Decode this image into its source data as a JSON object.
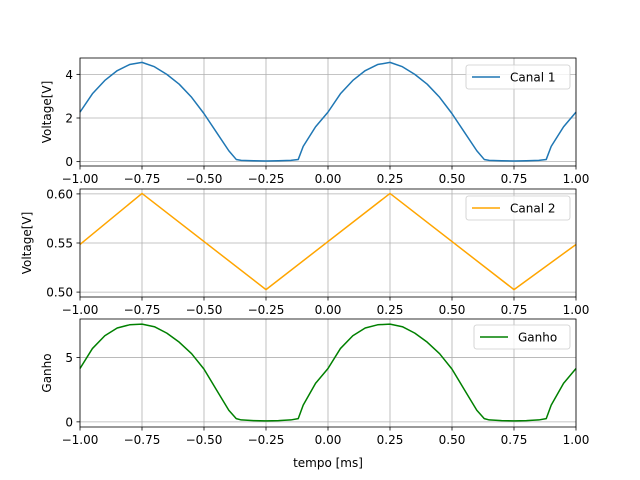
{
  "chart_data": [
    {
      "type": "line",
      "xlim": [
        -1.0,
        1.0
      ],
      "ylim": [
        -0.2,
        4.75
      ],
      "x_ticks": [
        -1.0,
        -0.75,
        -0.5,
        -0.25,
        0.0,
        0.25,
        0.5,
        0.75,
        1.0
      ],
      "x_tick_labels": [
        "−1.00",
        "−0.75",
        "−0.50",
        "−0.25",
        "0.00",
        "0.25",
        "0.50",
        "0.75",
        "1.00"
      ],
      "y_ticks": [
        0,
        2,
        4
      ],
      "y_tick_labels": [
        "0",
        "2",
        "4"
      ],
      "xlabel": "",
      "ylabel": "Voltage[V]",
      "grid": true,
      "legend_position": "upper right",
      "series": [
        {
          "name": "Canal 1",
          "color": "#1f77b4",
          "x": [
            -1.0,
            -0.95,
            -0.9,
            -0.85,
            -0.8,
            -0.75,
            -0.7,
            -0.65,
            -0.6,
            -0.55,
            -0.5,
            -0.45,
            -0.4,
            -0.37,
            -0.35,
            -0.3,
            -0.25,
            -0.2,
            -0.15,
            -0.12,
            -0.1,
            -0.05,
            0.0,
            0.05,
            0.1,
            0.15,
            0.2,
            0.25,
            0.3,
            0.35,
            0.4,
            0.45,
            0.5,
            0.55,
            0.6,
            0.63,
            0.65,
            0.7,
            0.75,
            0.8,
            0.85,
            0.88,
            0.9,
            0.95,
            1.0
          ],
          "y": [
            2.27,
            3.11,
            3.72,
            4.17,
            4.45,
            4.55,
            4.35,
            4.0,
            3.55,
            2.95,
            2.2,
            1.35,
            0.5,
            0.1,
            0.06,
            0.04,
            0.03,
            0.04,
            0.06,
            0.1,
            0.7,
            1.6,
            2.27,
            3.11,
            3.72,
            4.17,
            4.45,
            4.55,
            4.35,
            4.0,
            3.55,
            2.95,
            2.2,
            1.35,
            0.5,
            0.1,
            0.06,
            0.04,
            0.03,
            0.04,
            0.06,
            0.1,
            0.7,
            1.6,
            2.27
          ]
        }
      ]
    },
    {
      "type": "line",
      "xlim": [
        -1.0,
        1.0
      ],
      "ylim": [
        0.495,
        0.605
      ],
      "x_ticks": [
        -1.0,
        -0.75,
        -0.5,
        -0.25,
        0.0,
        0.25,
        0.5,
        0.75,
        1.0
      ],
      "x_tick_labels": [
        "−1.00",
        "−0.75",
        "−0.50",
        "−0.25",
        "0.00",
        "0.25",
        "0.50",
        "0.75",
        "1.00"
      ],
      "y_ticks": [
        0.5,
        0.55,
        0.6
      ],
      "y_tick_labels": [
        "0.50",
        "0.55",
        "0.60"
      ],
      "xlabel": "",
      "ylabel": "Voltage[V]",
      "grid": true,
      "legend_position": "upper right",
      "series": [
        {
          "name": "Canal 2",
          "color": "#ffa500",
          "x": [
            -1.0,
            -0.75,
            -0.25,
            0.25,
            0.75,
            1.0
          ],
          "y": [
            0.5485,
            0.6005,
            0.5025,
            0.6005,
            0.5025,
            0.5485
          ]
        }
      ]
    },
    {
      "type": "line",
      "xlim": [
        -1.0,
        1.0
      ],
      "ylim": [
        -0.4,
        8.0
      ],
      "x_ticks": [
        -1.0,
        -0.75,
        -0.5,
        -0.25,
        0.0,
        0.25,
        0.5,
        0.75,
        1.0
      ],
      "x_tick_labels": [
        "−1.00",
        "−0.75",
        "−0.50",
        "−0.25",
        "0.00",
        "0.25",
        "0.50",
        "0.75",
        "1.00"
      ],
      "y_ticks": [
        0,
        5
      ],
      "y_tick_labels": [
        "0",
        "5"
      ],
      "xlabel": "tempo [ms]",
      "ylabel": "Ganho",
      "grid": true,
      "legend_position": "upper right",
      "series": [
        {
          "name": "Ganho",
          "color": "#008000",
          "x": [
            -1.0,
            -0.95,
            -0.9,
            -0.85,
            -0.8,
            -0.75,
            -0.7,
            -0.65,
            -0.6,
            -0.55,
            -0.5,
            -0.45,
            -0.4,
            -0.37,
            -0.35,
            -0.3,
            -0.25,
            -0.2,
            -0.15,
            -0.12,
            -0.1,
            -0.05,
            0.0,
            0.05,
            0.1,
            0.15,
            0.2,
            0.25,
            0.3,
            0.35,
            0.4,
            0.45,
            0.5,
            0.55,
            0.6,
            0.63,
            0.65,
            0.7,
            0.75,
            0.8,
            0.85,
            0.88,
            0.9,
            0.95,
            1.0
          ],
          "y": [
            4.15,
            5.7,
            6.7,
            7.3,
            7.55,
            7.6,
            7.4,
            6.9,
            6.2,
            5.3,
            4.1,
            2.5,
            0.9,
            0.25,
            0.15,
            0.1,
            0.08,
            0.1,
            0.15,
            0.25,
            1.3,
            3.0,
            4.15,
            5.7,
            6.7,
            7.3,
            7.55,
            7.6,
            7.4,
            6.9,
            6.2,
            5.3,
            4.1,
            2.5,
            0.9,
            0.25,
            0.15,
            0.1,
            0.08,
            0.1,
            0.15,
            0.25,
            1.3,
            3.0,
            4.15
          ]
        }
      ]
    }
  ]
}
